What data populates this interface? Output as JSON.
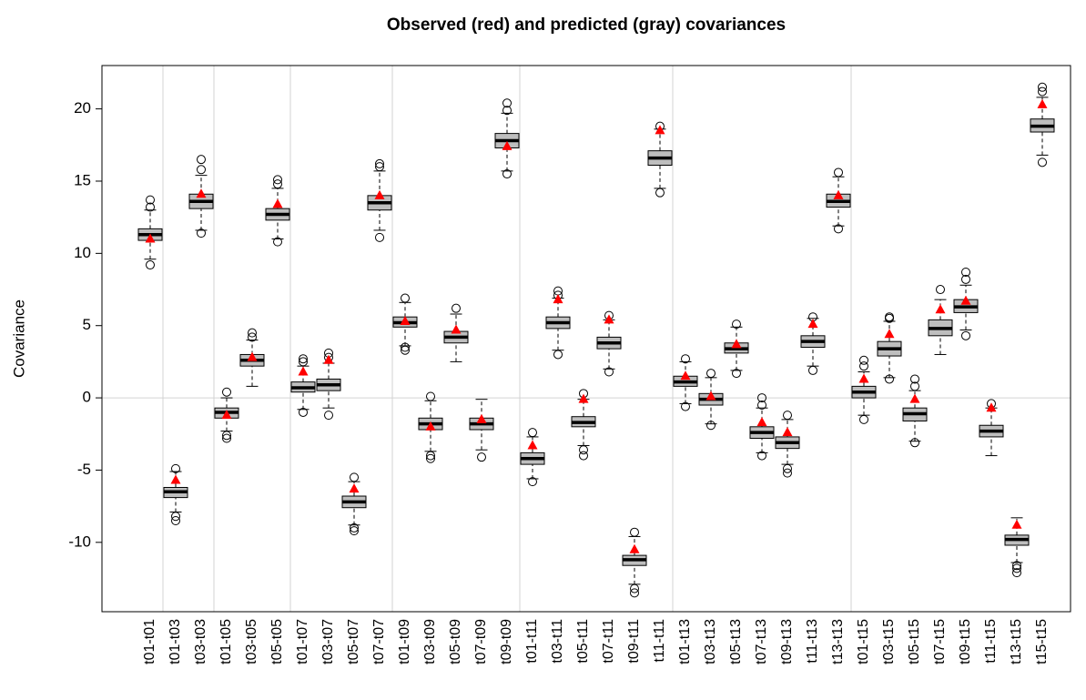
{
  "chart_data": {
    "type": "boxplot",
    "title": "Observed (red) and predicted (gray) covariances",
    "y_label": "Covariance",
    "categories": [
      "t01-t01",
      "t01-t03",
      "t03-t03",
      "t01-t05",
      "t03-t05",
      "t05-t05",
      "t01-t07",
      "t03-t07",
      "t05-t07",
      "t07-t07",
      "t01-t09",
      "t03-t09",
      "t05-t09",
      "t07-t09",
      "t09-t09",
      "t01-t11",
      "t03-t11",
      "t05-t11",
      "t07-t11",
      "t09-t11",
      "t11-t11",
      "t01-t13",
      "t03-t13",
      "t05-t13",
      "t07-t13",
      "t09-t13",
      "t11-t13",
      "t13-t13",
      "t01-t15",
      "t03-t15",
      "t05-t15",
      "t07-t15",
      "t09-t15",
      "t11-t15",
      "t13-t15",
      "t15-t15"
    ],
    "boxes": {
      "color": "#bebebe",
      "whislo": [
        9.6,
        -7.9,
        11.6,
        -2.3,
        0.8,
        11.0,
        -0.8,
        -0.7,
        -8.8,
        11.6,
        3.6,
        -3.7,
        2.5,
        -3.6,
        15.7,
        -5.6,
        3.3,
        -3.3,
        2.0,
        -12.9,
        14.5,
        -0.4,
        -1.8,
        1.9,
        -3.8,
        -4.6,
        2.2,
        11.9,
        -1.2,
        1.4,
        -3.0,
        3.0,
        4.7,
        -4.0,
        -11.4,
        16.8
      ],
      "q1": [
        10.9,
        -6.9,
        13.1,
        -1.4,
        2.2,
        12.3,
        0.4,
        0.5,
        -7.6,
        13.0,
        4.9,
        -2.2,
        3.8,
        -2.2,
        17.3,
        -4.6,
        4.8,
        -2.0,
        3.4,
        -11.6,
        16.1,
        0.8,
        -0.5,
        3.1,
        -2.8,
        -3.5,
        3.5,
        13.2,
        0.0,
        2.9,
        -1.6,
        4.3,
        5.9,
        -2.7,
        -10.2,
        18.4
      ],
      "median": [
        11.3,
        -6.5,
        13.6,
        -1.0,
        2.6,
        12.7,
        0.7,
        0.9,
        -7.2,
        13.5,
        5.2,
        -1.8,
        4.2,
        -1.8,
        17.8,
        -4.2,
        5.2,
        -1.7,
        3.8,
        -11.2,
        16.6,
        1.1,
        -0.1,
        3.4,
        -2.4,
        -3.1,
        3.9,
        13.6,
        0.4,
        3.4,
        -1.1,
        4.8,
        6.3,
        -2.3,
        -9.8,
        18.8
      ],
      "q3": [
        11.7,
        -6.2,
        14.1,
        -0.7,
        3.0,
        13.1,
        1.1,
        1.3,
        -6.8,
        14.0,
        5.6,
        -1.4,
        4.6,
        -1.4,
        18.3,
        -3.8,
        5.6,
        -1.3,
        4.2,
        -10.9,
        17.1,
        1.5,
        0.3,
        3.8,
        -2.0,
        -2.7,
        4.3,
        14.1,
        0.8,
        3.9,
        -0.7,
        5.4,
        6.8,
        -1.9,
        -9.5,
        19.3
      ],
      "whishi": [
        13.0,
        -5.1,
        15.4,
        0.0,
        4.0,
        14.5,
        2.2,
        2.4,
        -5.8,
        15.7,
        6.6,
        -0.2,
        5.8,
        -0.1,
        19.7,
        -2.7,
        6.9,
        -0.1,
        5.4,
        -9.6,
        18.6,
        2.5,
        1.4,
        4.9,
        -0.7,
        -1.5,
        5.5,
        15.3,
        1.8,
        5.3,
        0.5,
        6.8,
        7.8,
        -0.7,
        -8.3,
        20.8
      ],
      "outliers": [
        [
          9.2,
          13.2,
          13.7
        ],
        [
          -8.2,
          -8.5,
          -4.9
        ],
        [
          11.4,
          15.8,
          16.5
        ],
        [
          -2.6,
          -2.8,
          0.4
        ],
        [
          4.2,
          4.5
        ],
        [
          10.8,
          14.8,
          15.1
        ],
        [
          -1.0,
          2.5,
          2.7
        ],
        [
          -1.2,
          2.8,
          3.1
        ],
        [
          -9.0,
          -9.2,
          -5.5
        ],
        [
          11.1,
          16.0,
          16.2
        ],
        [
          3.3,
          3.5,
          6.9
        ],
        [
          -4.0,
          -4.2,
          0.1
        ],
        [
          6.2
        ],
        [
          -4.1
        ],
        [
          15.5,
          19.9,
          20.4
        ],
        [
          -5.8,
          -2.4
        ],
        [
          3.0,
          7.1,
          7.4
        ],
        [
          -3.6,
          -4.0,
          0.3
        ],
        [
          1.8,
          5.7
        ],
        [
          -13.2,
          -13.5,
          -9.3
        ],
        [
          14.2,
          18.8
        ],
        [
          -0.6,
          2.7
        ],
        [
          -1.9,
          1.7
        ],
        [
          1.7,
          5.1
        ],
        [
          -4.0,
          -0.5,
          0.0
        ],
        [
          -4.9,
          -5.2,
          -1.2
        ],
        [
          1.9,
          5.6
        ],
        [
          11.7,
          15.6
        ],
        [
          -1.5,
          2.2,
          2.6
        ],
        [
          1.3,
          5.5,
          5.6
        ],
        [
          -3.1,
          0.8,
          1.3
        ],
        [
          7.5
        ],
        [
          4.3,
          8.2,
          8.7
        ],
        [
          -0.4
        ],
        [
          -11.6,
          -11.8,
          -12.1
        ],
        [
          16.3,
          21.2,
          21.5
        ]
      ]
    },
    "observed": {
      "color": "#ff0000",
      "values": [
        11.0,
        -5.7,
        14.1,
        -1.2,
        2.8,
        13.4,
        1.8,
        2.6,
        -6.3,
        14.0,
        5.3,
        -2.0,
        4.7,
        -1.5,
        17.4,
        -3.3,
        6.8,
        -0.1,
        5.4,
        -10.5,
        18.5,
        1.5,
        0.1,
        3.7,
        -1.7,
        -2.4,
        5.1,
        14.0,
        1.3,
        4.4,
        -0.1,
        6.1,
        6.7,
        -0.7,
        -8.8,
        20.3
      ]
    },
    "hline": 0,
    "ylim": [
      -14.8,
      23.0
    ],
    "yticks": [
      -10,
      -5,
      0,
      5,
      10,
      15,
      20
    ]
  }
}
